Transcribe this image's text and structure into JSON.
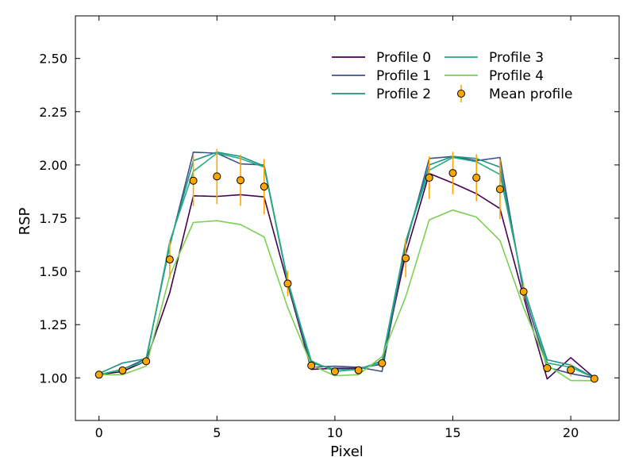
{
  "chart_data": {
    "type": "line",
    "title": "",
    "xlabel": "Pixel",
    "ylabel": "RSP",
    "xlim": [
      -1,
      22.05
    ],
    "ylim": [
      0.8,
      2.7
    ],
    "xticks": [
      0,
      5,
      10,
      15,
      20
    ],
    "yticks": [
      1.0,
      1.25,
      1.5,
      1.75,
      2.0,
      2.25,
      2.5
    ],
    "xtick_labels": [
      "0",
      "5",
      "10",
      "15",
      "20"
    ],
    "ytick_labels": [
      "1.00",
      "1.25",
      "1.50",
      "1.75",
      "2.00",
      "2.25",
      "2.50"
    ],
    "legend_position": "upper-right",
    "x": [
      0,
      1,
      2,
      3,
      4,
      5,
      6,
      7,
      8,
      9,
      10,
      11,
      12,
      13,
      14,
      15,
      16,
      17,
      18,
      19,
      20,
      21
    ],
    "series": [
      {
        "name": "Profile 0",
        "color": "#440154",
        "values": [
          1.015,
          1.03,
          1.08,
          1.4,
          1.855,
          1.852,
          1.86,
          1.85,
          1.44,
          1.04,
          1.045,
          1.045,
          1.065,
          1.58,
          1.96,
          1.915,
          1.865,
          1.795,
          1.38,
          0.995,
          1.095,
          1.0
        ]
      },
      {
        "name": "Profile 1",
        "color": "#3b528b",
        "values": [
          1.015,
          1.04,
          1.09,
          1.62,
          2.06,
          2.055,
          2.005,
          2.0,
          1.45,
          1.05,
          1.055,
          1.05,
          1.03,
          1.62,
          2.03,
          2.04,
          2.02,
          2.035,
          1.4,
          1.05,
          1.02,
          1.0
        ]
      },
      {
        "name": "Profile 2",
        "color": "#21918c",
        "values": [
          1.02,
          1.07,
          1.09,
          1.625,
          2.02,
          2.06,
          2.04,
          1.995,
          1.46,
          1.07,
          1.04,
          1.04,
          1.08,
          1.64,
          2.0,
          2.04,
          2.03,
          1.99,
          1.42,
          1.085,
          1.06,
          1.0
        ]
      },
      {
        "name": "Profile 3",
        "color": "#27ad81",
        "values": [
          1.015,
          1.04,
          1.08,
          1.64,
          1.97,
          2.055,
          2.03,
          1.99,
          1.45,
          1.08,
          1.03,
          1.04,
          1.07,
          1.64,
          1.975,
          2.035,
          2.015,
          1.955,
          1.43,
          1.07,
          1.05,
          1.0
        ]
      },
      {
        "name": "Profile 4",
        "color": "#7ad151",
        "values": [
          1.015,
          1.015,
          1.055,
          1.48,
          1.73,
          1.738,
          1.72,
          1.662,
          1.33,
          1.06,
          1.01,
          1.015,
          1.1,
          1.38,
          1.742,
          1.788,
          1.755,
          1.645,
          1.33,
          1.06,
          0.988,
          0.987
        ]
      }
    ],
    "mean_profile": {
      "name": "Mean profile",
      "marker_color": "#ffa500",
      "error_color": "#ffa500",
      "values": [
        1.015,
        1.035,
        1.078,
        1.556,
        1.926,
        1.946,
        1.928,
        1.898,
        1.443,
        1.058,
        1.03,
        1.036,
        1.069,
        1.562,
        1.94,
        1.962,
        1.94,
        1.886,
        1.405,
        1.046,
        1.037,
        0.996
      ],
      "errors": [
        0.0,
        0.01,
        0.015,
        0.09,
        0.12,
        0.13,
        0.12,
        0.13,
        0.06,
        0.015,
        0.015,
        0.015,
        0.02,
        0.09,
        0.1,
        0.1,
        0.11,
        0.14,
        0.04,
        0.015,
        0.03,
        0.005
      ]
    }
  }
}
